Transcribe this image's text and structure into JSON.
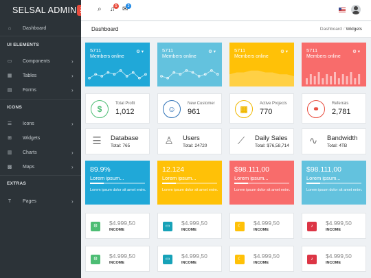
{
  "app": {
    "title": "SELSAL ADMIN"
  },
  "topbar": {
    "notifications_badge": "5",
    "messages_badge": "3",
    "colors": {
      "notif": "#e84c3d",
      "msg": "#1e88e5"
    }
  },
  "sidebar": {
    "sections": [
      {
        "heading": "",
        "items": [
          {
            "label": "Dashboard",
            "icon": "dashboard-icon",
            "glyph": "⌂",
            "chevron": false
          }
        ]
      },
      {
        "heading": "UI ELEMENTS",
        "items": [
          {
            "label": "Components",
            "icon": "laptop-icon",
            "glyph": "▭",
            "chevron": true
          },
          {
            "label": "Tables",
            "icon": "table-icon",
            "glyph": "▦",
            "chevron": true
          },
          {
            "label": "Forms",
            "icon": "form-icon",
            "glyph": "▤",
            "chevron": true
          }
        ]
      },
      {
        "heading": "ICONS",
        "items": [
          {
            "label": "Icons",
            "icon": "icons-icon",
            "glyph": "☰",
            "chevron": true
          },
          {
            "label": "Widgets",
            "icon": "widgets-icon",
            "glyph": "⊞",
            "chevron": false
          },
          {
            "label": "Charts",
            "icon": "chart-icon",
            "glyph": "▥",
            "chevron": true
          },
          {
            "label": "Maps",
            "icon": "map-icon",
            "glyph": "▩",
            "chevron": true
          }
        ]
      },
      {
        "heading": "EXTRAS",
        "items": [
          {
            "label": "Pages",
            "icon": "pages-icon",
            "glyph": "T",
            "chevron": true
          }
        ]
      }
    ]
  },
  "page": {
    "title": "Dashboard",
    "breadcrumb": [
      "Dashboard",
      "Widgets"
    ]
  },
  "spark_cards": [
    {
      "value": "5711",
      "label": "Members online",
      "color": "#20a8d8",
      "chart": "line",
      "data": [
        3,
        5,
        4,
        6,
        5,
        7,
        4,
        6,
        3,
        5
      ]
    },
    {
      "value": "5711",
      "label": "Members online",
      "color": "#63c2de",
      "chart": "line",
      "data": [
        4,
        3,
        6,
        5,
        7,
        6,
        4,
        5,
        7,
        5
      ]
    },
    {
      "value": "5711",
      "label": "Members online",
      "color": "#ffc107",
      "chart": "area",
      "data": [
        5,
        6,
        6,
        7,
        7,
        6,
        6,
        5,
        5,
        4
      ]
    },
    {
      "value": "5711",
      "label": "Members online",
      "color": "#f86c6b",
      "chart": "bar",
      "data": [
        3,
        5,
        4,
        6,
        3,
        5,
        4,
        6,
        3,
        5,
        4,
        6,
        3,
        5
      ]
    }
  ],
  "stat_cards": [
    {
      "title": "Total Profit",
      "value": "1,012",
      "icon": "dollar-icon",
      "glyph": "$",
      "color": "#4dbd74"
    },
    {
      "title": "New Customer",
      "value": "961",
      "icon": "user-icon",
      "glyph": "☺",
      "color": "#2a6fb5"
    },
    {
      "title": "Active Projects",
      "value": "770",
      "icon": "grid-icon",
      "glyph": "▦",
      "color": "#f0b800"
    },
    {
      "title": "Referrals",
      "value": "2,781",
      "icon": "link-icon",
      "glyph": "⚭",
      "color": "#e84c3d"
    }
  ],
  "info_cards": [
    {
      "title": "Database",
      "sub": "Total: 765",
      "icon": "database-icon",
      "glyph": "☰"
    },
    {
      "title": "Users",
      "sub": "Total: 24720",
      "icon": "user-outline-icon",
      "glyph": "♙"
    },
    {
      "title": "Daily Sales",
      "sub": "Total: $76,58,714",
      "icon": "trend-icon",
      "glyph": "⟋"
    },
    {
      "title": "Bandwidth",
      "sub": "Total: 4TB",
      "icon": "pulse-icon",
      "glyph": "∿"
    }
  ],
  "progress_cards": [
    {
      "value": "89.9%",
      "label": "Lorem ipsum...",
      "desc": "Lorem ipsum dolor sit amet enim.",
      "progress": 0.25,
      "color": "#20a8d8"
    },
    {
      "value": "12.124",
      "label": "Lorem ipsum...",
      "desc": "Lorem ipsum dolor sit amet enim.",
      "progress": 0.25,
      "color": "#ffc107"
    },
    {
      "value": "$98.111,00",
      "label": "Lorem ipsum...",
      "desc": "Lorem ipsum dolor sit amet enim.",
      "progress": 0.25,
      "color": "#f86c6b"
    },
    {
      "value": "$98.111,00",
      "label": "Lorem ipsum...",
      "desc": "Lorem ipsum dolor sit amet enim.",
      "progress": 0.25,
      "color": "#63c2de"
    }
  ],
  "income_rows": [
    [
      {
        "value": "$4.999,50",
        "label": "INCOME",
        "icon": "settings-icon",
        "glyph": "⚙",
        "color": "#4dbd74"
      },
      {
        "value": "$4.999,50",
        "label": "INCOME",
        "icon": "laptop-icon",
        "glyph": "▭",
        "color": "#17a2b8"
      },
      {
        "value": "$4.999,50",
        "label": "INCOME",
        "icon": "moon-icon",
        "glyph": "☾",
        "color": "#ffc107"
      },
      {
        "value": "$4.999,50",
        "label": "INCOME",
        "icon": "bell-icon",
        "glyph": "♪",
        "color": "#dc3545"
      }
    ],
    [
      {
        "value": "$4.999,50",
        "label": "INCOME",
        "icon": "settings-icon",
        "glyph": "⚙",
        "color": "#4dbd74"
      },
      {
        "value": "$4.999,50",
        "label": "INCOME",
        "icon": "laptop-icon",
        "glyph": "▭",
        "color": "#17a2b8"
      },
      {
        "value": "$4.999,50",
        "label": "INCOME",
        "icon": "moon-icon",
        "glyph": "☾",
        "color": "#ffc107"
      },
      {
        "value": "$4.999,50",
        "label": "INCOME",
        "icon": "bell-icon",
        "glyph": "♪",
        "color": "#dc3545"
      }
    ]
  ]
}
